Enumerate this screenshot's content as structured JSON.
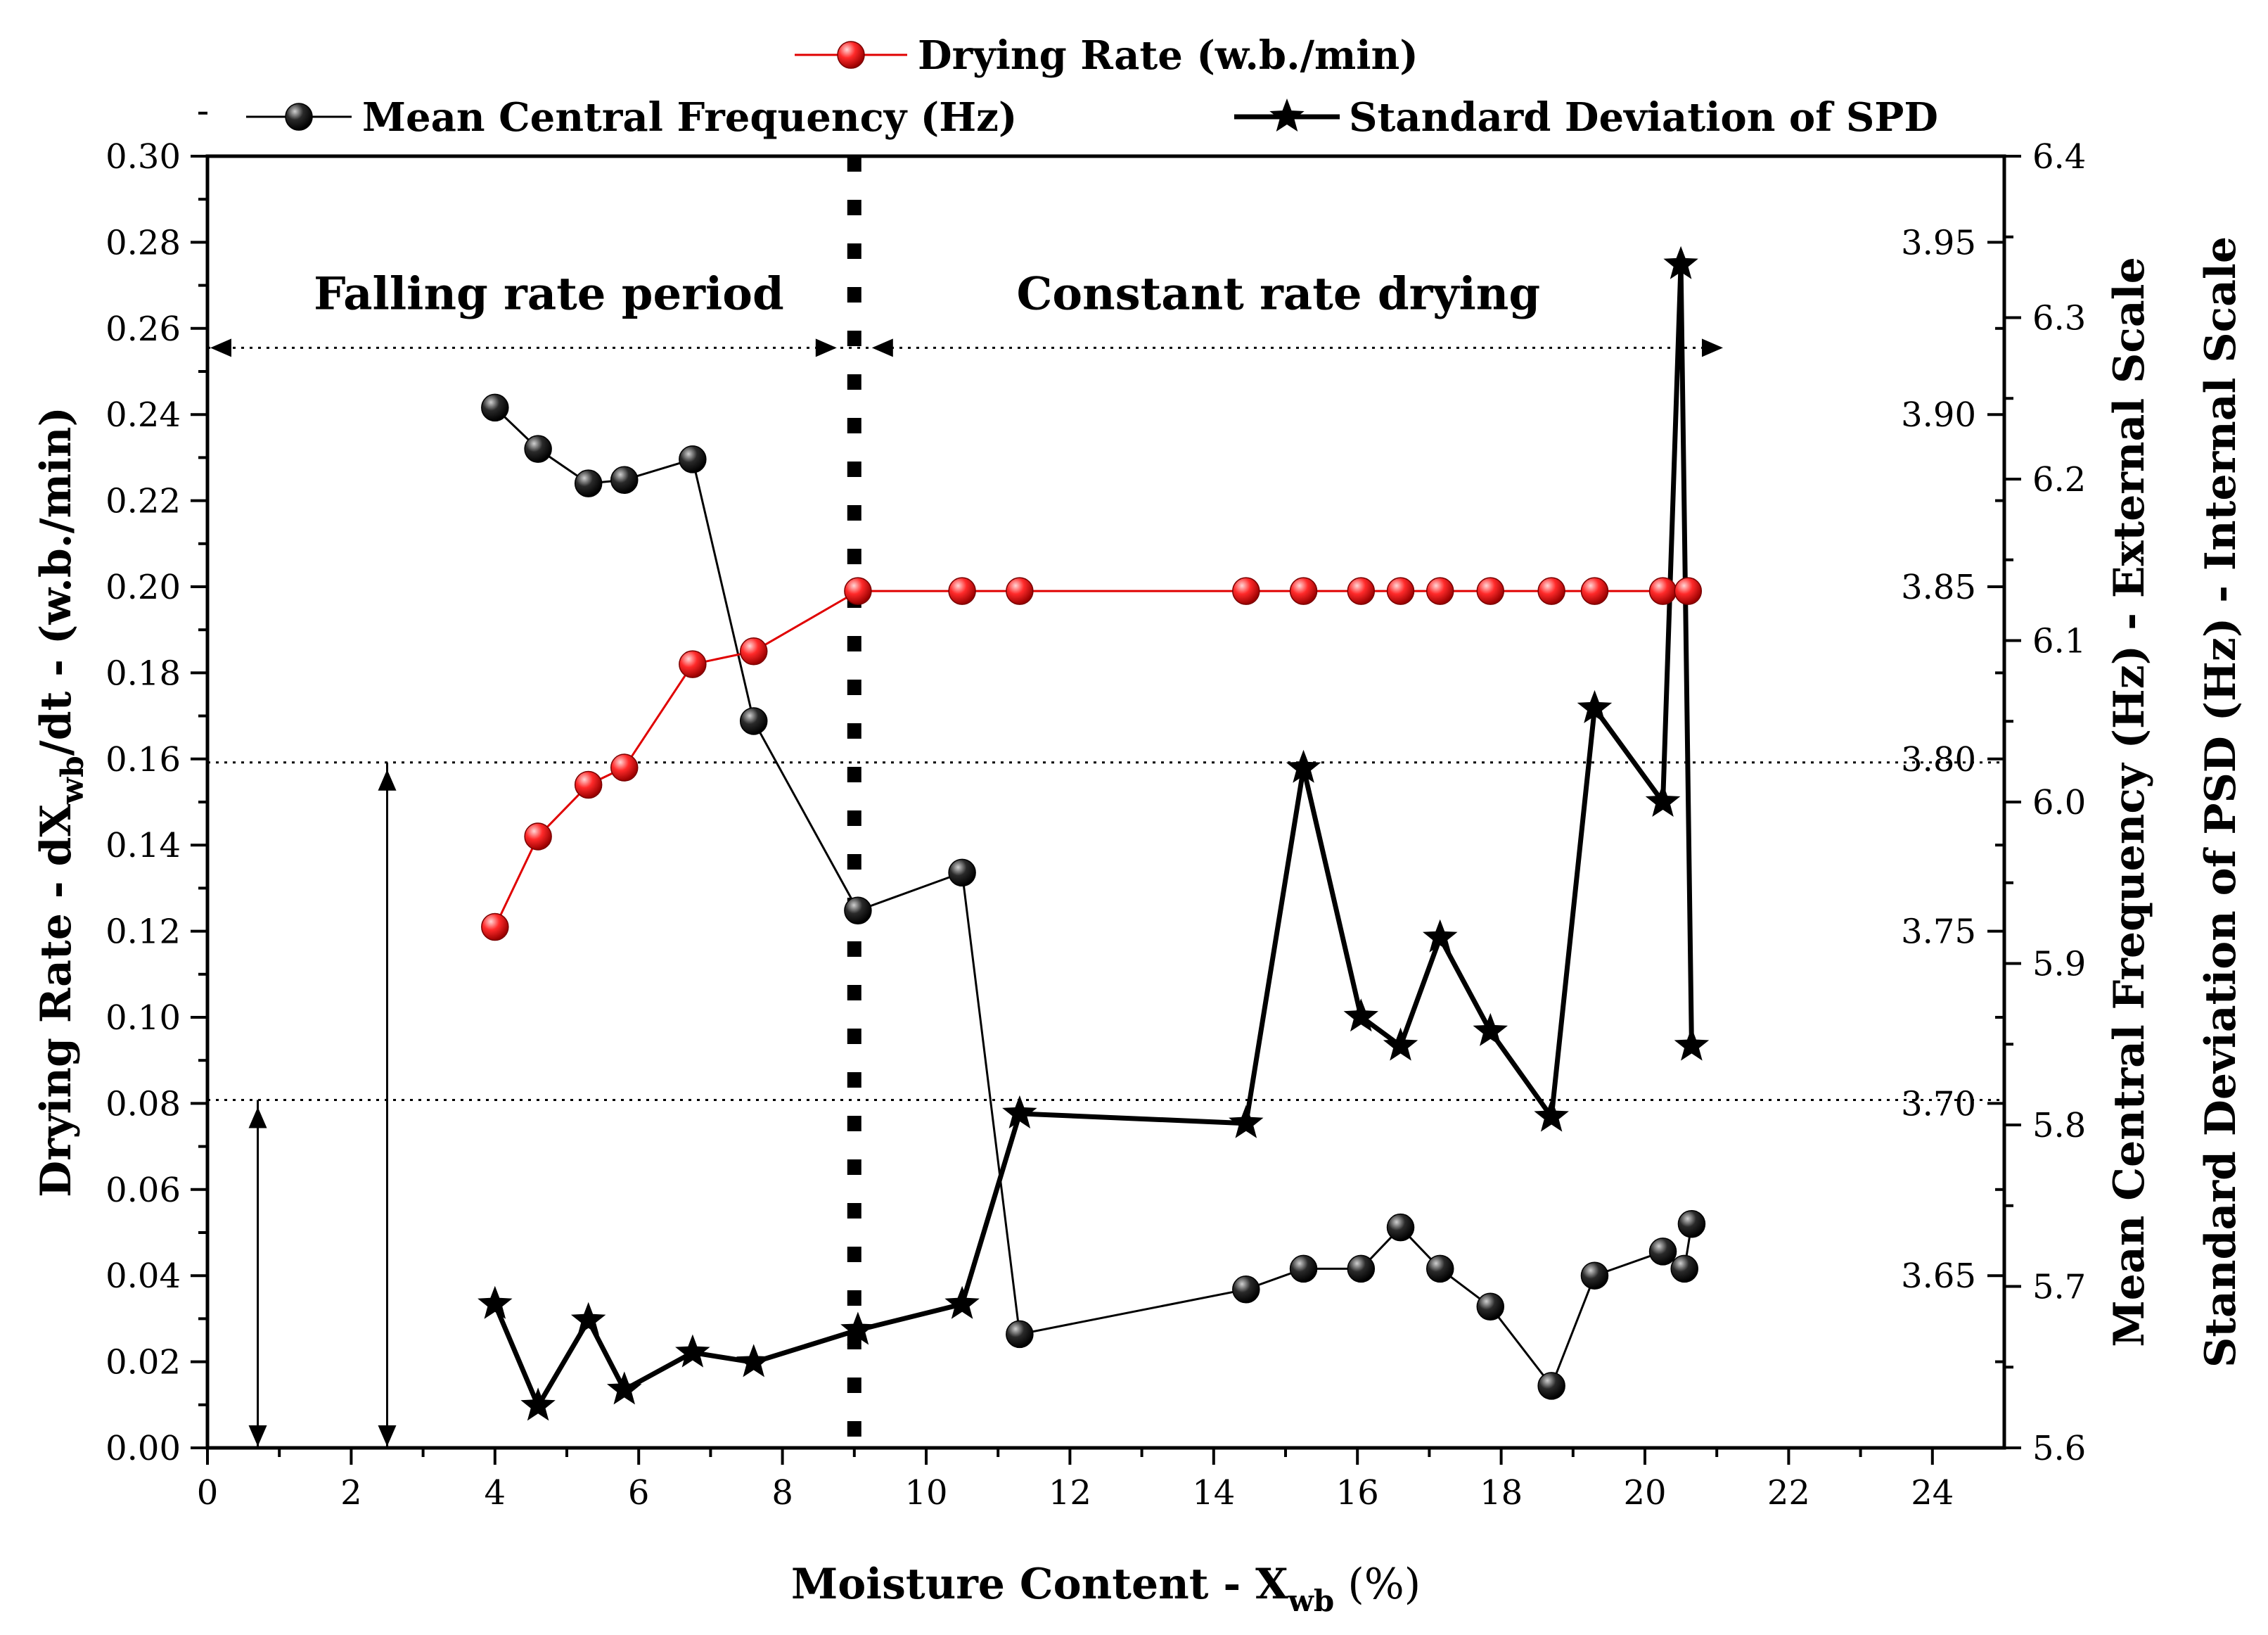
{
  "chart_data": {
    "type": "line",
    "title": "",
    "xlabel": "Moisture Content - X",
    "xlabel_sub": "wb",
    "xlabel_unit": " (%)",
    "ylabel": "Drying Rate - dX",
    "ylabel_sub": "wb",
    "ylabel_unit": "/dt - (w.b./min)",
    "y2label": "Mean Central Frequency (Hz) - External Scale",
    "y3label": "Standard Deviation of PSD (Hz) - Internal Scale",
    "xlim": [
      0,
      25
    ],
    "ylim": [
      0,
      0.3
    ],
    "y2lim": [
      3.6,
      3.975
    ],
    "y3lim": [
      5.6,
      6.4
    ],
    "x_ticks": [
      "0",
      "2",
      "4",
      "6",
      "8",
      "10",
      "12",
      "14",
      "16",
      "18",
      "20",
      "22",
      "24"
    ],
    "y_ticks": [
      "0.00",
      "0.02",
      "0.04",
      "0.06",
      "0.08",
      "0.10",
      "0.12",
      "0.14",
      "0.16",
      "0.18",
      "0.20",
      "0.22",
      "0.24",
      "0.26",
      "0.28",
      "0.30"
    ],
    "y2_ticks": [
      "3.65",
      "3.70",
      "3.75",
      "3.80",
      "3.85",
      "3.90",
      "3.95"
    ],
    "y3_ticks": [
      "5.6",
      "5.7",
      "5.8",
      "5.9",
      "6.0",
      "6.1",
      "6.2",
      "6.3",
      "6.4"
    ],
    "series": [
      {
        "name": "Drying Rate (w.b./min)",
        "color": "#e00000",
        "marker": "sphere",
        "axis": "left",
        "x": [
          4.0,
          4.6,
          5.3,
          5.8,
          6.75,
          7.6,
          9.05,
          10.5,
          11.3,
          14.45,
          15.25,
          16.05,
          16.6,
          17.15,
          17.85,
          18.7,
          19.3,
          20.25,
          20.6
        ],
        "values": [
          0.121,
          0.142,
          0.154,
          0.158,
          0.182,
          0.185,
          0.199,
          0.199,
          0.199,
          0.199,
          0.199,
          0.199,
          0.199,
          0.199,
          0.199,
          0.199,
          0.199,
          0.199,
          0.199
        ]
      },
      {
        "name": "Mean Central Frequency (Hz)",
        "color": "#000000",
        "marker": "sphere",
        "axis": "right-external",
        "x": [
          4.0,
          4.6,
          5.3,
          5.8,
          6.75,
          7.6,
          9.05,
          10.5,
          11.3,
          14.45,
          15.25,
          16.05,
          16.6,
          17.15,
          17.85,
          18.7,
          19.3,
          20.25,
          20.55,
          20.65
        ],
        "values": [
          3.902,
          3.89,
          3.88,
          3.881,
          3.887,
          3.811,
          3.756,
          3.767,
          3.633,
          3.646,
          3.652,
          3.652,
          3.664,
          3.652,
          3.641,
          3.618,
          3.65,
          3.657,
          3.652,
          3.665
        ]
      },
      {
        "name": "Standard Deviation of SPD",
        "color": "#000000",
        "marker": "star",
        "axis": "right-internal",
        "x": [
          4.0,
          4.6,
          5.3,
          5.8,
          6.75,
          7.6,
          9.05,
          10.5,
          11.3,
          14.45,
          15.25,
          16.05,
          16.6,
          17.15,
          17.85,
          18.7,
          19.3,
          20.25,
          20.5,
          20.65
        ],
        "values": [
          5.689,
          5.626,
          5.679,
          5.636,
          5.659,
          5.653,
          5.673,
          5.689,
          5.807,
          5.801,
          6.021,
          5.867,
          5.849,
          5.916,
          5.858,
          5.805,
          6.058,
          6.0,
          6.333,
          5.849
        ]
      }
    ],
    "annotations": [
      {
        "text": "Falling rate period"
      },
      {
        "text": "Constant rate drying"
      }
    ],
    "vertical_line_x": 9.0,
    "legend_position": "top"
  }
}
